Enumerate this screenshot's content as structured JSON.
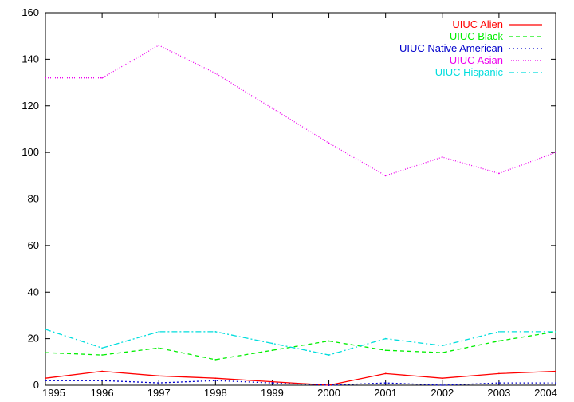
{
  "chart_data": {
    "type": "line",
    "x": [
      1995,
      1996,
      1997,
      1998,
      1999,
      2000,
      2001,
      2002,
      2003,
      2004
    ],
    "xlim": [
      1995,
      2004
    ],
    "ylim": [
      0,
      160
    ],
    "xticks": [
      "1995",
      "1996",
      "1997",
      "1998",
      "1999",
      "2000",
      "2001",
      "2002",
      "2003",
      "2004"
    ],
    "yticks": [
      "0",
      "20",
      "40",
      "60",
      "80",
      "100",
      "120",
      "140",
      "160"
    ],
    "grid": false,
    "legend_position": "top-right",
    "series": [
      {
        "name": "UIUC Alien",
        "color": "#ff0000",
        "dash": "solid",
        "values": [
          3,
          6,
          4,
          3,
          1.5,
          0,
          5,
          3,
          5,
          6
        ]
      },
      {
        "name": "UIUC Black",
        "color": "#00ee00",
        "dash": "dashed",
        "values": [
          14,
          13,
          16,
          11,
          15,
          19,
          15,
          14,
          19,
          23
        ]
      },
      {
        "name": "UIUC Native American",
        "color": "#0000cc",
        "dash": "dotted",
        "values": [
          2,
          2,
          1,
          2,
          1,
          0,
          1,
          0,
          1,
          1
        ]
      },
      {
        "name": "UIUC Asian",
        "color": "#ee00ee",
        "dash": "fine-dotted",
        "values": [
          132,
          132,
          146,
          134,
          119,
          104,
          90,
          98,
          91,
          100
        ]
      },
      {
        "name": "UIUC Hispanic",
        "color": "#00dddd",
        "dash": "dash-dot",
        "values": [
          24,
          16,
          23,
          23,
          18,
          13,
          20,
          17,
          23,
          23
        ]
      }
    ]
  }
}
